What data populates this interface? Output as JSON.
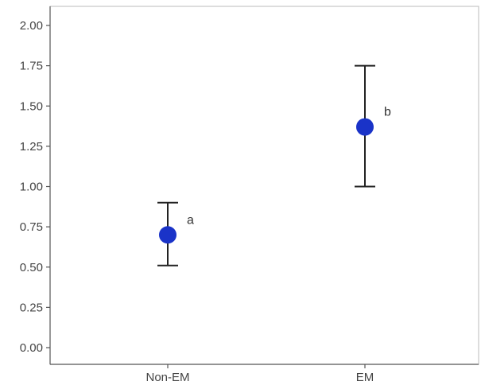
{
  "chart_data": {
    "type": "scatter",
    "categories": [
      "Non-EM",
      "EM"
    ],
    "series": [
      {
        "values": [
          0.7,
          1.37
        ],
        "error_low": [
          0.51,
          1.0
        ],
        "error_high": [
          0.9,
          1.75
        ]
      }
    ],
    "annotations": [
      "a",
      "b"
    ],
    "ylim": [
      0,
      2.0
    ],
    "yticks": [
      "0.00",
      "0.25",
      "0.50",
      "0.75",
      "1.00",
      "1.25",
      "1.50",
      "1.75",
      "2.00"
    ],
    "title": "",
    "xlabel": "",
    "ylabel": "",
    "grid": false,
    "colors": {
      "point": "#1a33c8",
      "errorbar": "#222222",
      "axis": "#555555"
    }
  }
}
